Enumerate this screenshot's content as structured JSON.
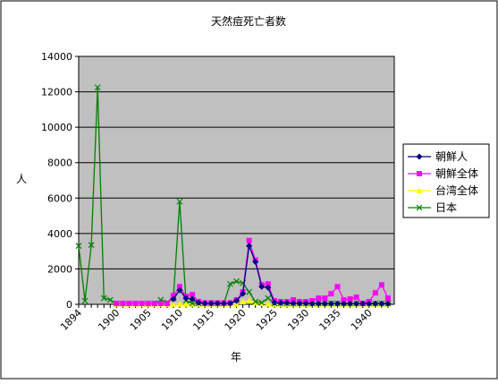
{
  "chart_data": {
    "type": "line",
    "title": "天然痘死亡者数",
    "xlabel": "年",
    "ylabel": "人",
    "ylim": [
      0,
      14000
    ],
    "yticks": [
      0,
      2000,
      4000,
      6000,
      8000,
      10000,
      12000,
      14000
    ],
    "xlim": [
      1894,
      1944
    ],
    "xticks": [
      1894,
      1900,
      1905,
      1910,
      1915,
      1920,
      1925,
      1930,
      1935,
      1940
    ],
    "grid": true,
    "legend_position": "right",
    "colors": {
      "plot_background": "#c0c0c0",
      "gridline": "#000000",
      "frame": "#000000"
    },
    "series": [
      {
        "name": "朝鮮人",
        "color": "#000080",
        "marker": "diamond",
        "points": [
          [
            1909,
            300
          ],
          [
            1910,
            800
          ],
          [
            1911,
            350
          ],
          [
            1912,
            300
          ],
          [
            1913,
            100
          ],
          [
            1914,
            50
          ],
          [
            1915,
            50
          ],
          [
            1916,
            50
          ],
          [
            1917,
            50
          ],
          [
            1918,
            50
          ],
          [
            1919,
            200
          ],
          [
            1920,
            600
          ],
          [
            1921,
            3300
          ],
          [
            1922,
            2400
          ],
          [
            1923,
            1000
          ],
          [
            1924,
            950
          ],
          [
            1925,
            100
          ],
          [
            1926,
            80
          ],
          [
            1927,
            80
          ],
          [
            1928,
            60
          ],
          [
            1929,
            50
          ],
          [
            1930,
            50
          ],
          [
            1931,
            40
          ],
          [
            1932,
            40
          ],
          [
            1933,
            40
          ],
          [
            1934,
            40
          ],
          [
            1935,
            40
          ],
          [
            1936,
            40
          ],
          [
            1937,
            40
          ],
          [
            1938,
            40
          ],
          [
            1939,
            40
          ],
          [
            1940,
            40
          ],
          [
            1941,
            40
          ],
          [
            1942,
            40
          ],
          [
            1943,
            40
          ]
        ]
      },
      {
        "name": "朝鮮全体",
        "color": "#ff00ff",
        "marker": "square",
        "points": [
          [
            1900,
            50
          ],
          [
            1901,
            50
          ],
          [
            1902,
            50
          ],
          [
            1903,
            50
          ],
          [
            1904,
            50
          ],
          [
            1905,
            50
          ],
          [
            1906,
            50
          ],
          [
            1907,
            50
          ],
          [
            1908,
            50
          ],
          [
            1909,
            500
          ],
          [
            1910,
            1000
          ],
          [
            1911,
            450
          ],
          [
            1912,
            550
          ],
          [
            1913,
            150
          ],
          [
            1914,
            80
          ],
          [
            1915,
            80
          ],
          [
            1916,
            80
          ],
          [
            1917,
            80
          ],
          [
            1918,
            80
          ],
          [
            1919,
            250
          ],
          [
            1920,
            700
          ],
          [
            1921,
            3600
          ],
          [
            1922,
            2500
          ],
          [
            1923,
            1100
          ],
          [
            1924,
            1150
          ],
          [
            1925,
            200
          ],
          [
            1926,
            150
          ],
          [
            1927,
            150
          ],
          [
            1928,
            250
          ],
          [
            1929,
            150
          ],
          [
            1930,
            150
          ],
          [
            1931,
            200
          ],
          [
            1932,
            350
          ],
          [
            1933,
            350
          ],
          [
            1934,
            600
          ],
          [
            1935,
            1000
          ],
          [
            1936,
            250
          ],
          [
            1937,
            300
          ],
          [
            1938,
            400
          ],
          [
            1939,
            50
          ],
          [
            1940,
            150
          ],
          [
            1941,
            650
          ],
          [
            1942,
            1100
          ],
          [
            1943,
            350
          ]
        ]
      },
      {
        "name": "台湾全体",
        "color": "#ffff00",
        "marker": "triangle",
        "points": [
          [
            1900,
            20
          ],
          [
            1901,
            20
          ],
          [
            1902,
            20
          ],
          [
            1903,
            20
          ],
          [
            1904,
            20
          ],
          [
            1905,
            20
          ],
          [
            1906,
            20
          ],
          [
            1907,
            20
          ],
          [
            1908,
            20
          ],
          [
            1909,
            20
          ],
          [
            1910,
            20
          ],
          [
            1911,
            20
          ],
          [
            1912,
            20
          ],
          [
            1913,
            20
          ],
          [
            1914,
            20
          ],
          [
            1915,
            20
          ],
          [
            1916,
            20
          ],
          [
            1917,
            20
          ],
          [
            1918,
            20
          ],
          [
            1919,
            20
          ],
          [
            1920,
            150
          ],
          [
            1921,
            200
          ],
          [
            1922,
            100
          ],
          [
            1923,
            50
          ],
          [
            1924,
            20
          ],
          [
            1925,
            20
          ],
          [
            1926,
            20
          ],
          [
            1927,
            20
          ],
          [
            1928,
            20
          ],
          [
            1929,
            20
          ],
          [
            1930,
            20
          ],
          [
            1931,
            20
          ],
          [
            1932,
            20
          ],
          [
            1933,
            20
          ],
          [
            1934,
            20
          ],
          [
            1935,
            20
          ],
          [
            1936,
            20
          ],
          [
            1937,
            20
          ],
          [
            1938,
            20
          ],
          [
            1939,
            20
          ],
          [
            1940,
            20
          ],
          [
            1941,
            20
          ],
          [
            1942,
            20
          ],
          [
            1943,
            20
          ]
        ]
      },
      {
        "name": "日本",
        "color": "#008000",
        "marker": "x",
        "points": [
          [
            1894,
            3300
          ],
          [
            1895,
            200
          ],
          [
            1896,
            3350
          ],
          [
            1897,
            12250
          ],
          [
            1898,
            350
          ],
          [
            1899,
            250
          ],
          [
            1900,
            50
          ],
          [
            1901,
            50
          ],
          [
            1902,
            50
          ],
          [
            1903,
            50
          ],
          [
            1904,
            50
          ],
          [
            1905,
            50
          ],
          [
            1906,
            50
          ],
          [
            1907,
            250
          ],
          [
            1908,
            100
          ],
          [
            1909,
            350
          ],
          [
            1910,
            5800
          ],
          [
            1911,
            200
          ],
          [
            1912,
            50
          ],
          [
            1913,
            50
          ],
          [
            1914,
            50
          ],
          [
            1915,
            50
          ],
          [
            1916,
            50
          ],
          [
            1917,
            50
          ],
          [
            1918,
            1150
          ],
          [
            1919,
            1300
          ],
          [
            1920,
            1200
          ],
          [
            1921,
            700
          ],
          [
            1922,
            150
          ],
          [
            1923,
            100
          ],
          [
            1924,
            350
          ],
          [
            1925,
            50
          ],
          [
            1926,
            50
          ],
          [
            1927,
            50
          ],
          [
            1928,
            50
          ],
          [
            1929,
            50
          ],
          [
            1930,
            50
          ],
          [
            1931,
            50
          ],
          [
            1932,
            50
          ],
          [
            1933,
            50
          ],
          [
            1934,
            50
          ],
          [
            1935,
            50
          ],
          [
            1936,
            50
          ],
          [
            1937,
            50
          ],
          [
            1938,
            50
          ],
          [
            1939,
            50
          ],
          [
            1940,
            50
          ],
          [
            1941,
            50
          ],
          [
            1942,
            50
          ],
          [
            1943,
            50
          ]
        ]
      }
    ]
  }
}
